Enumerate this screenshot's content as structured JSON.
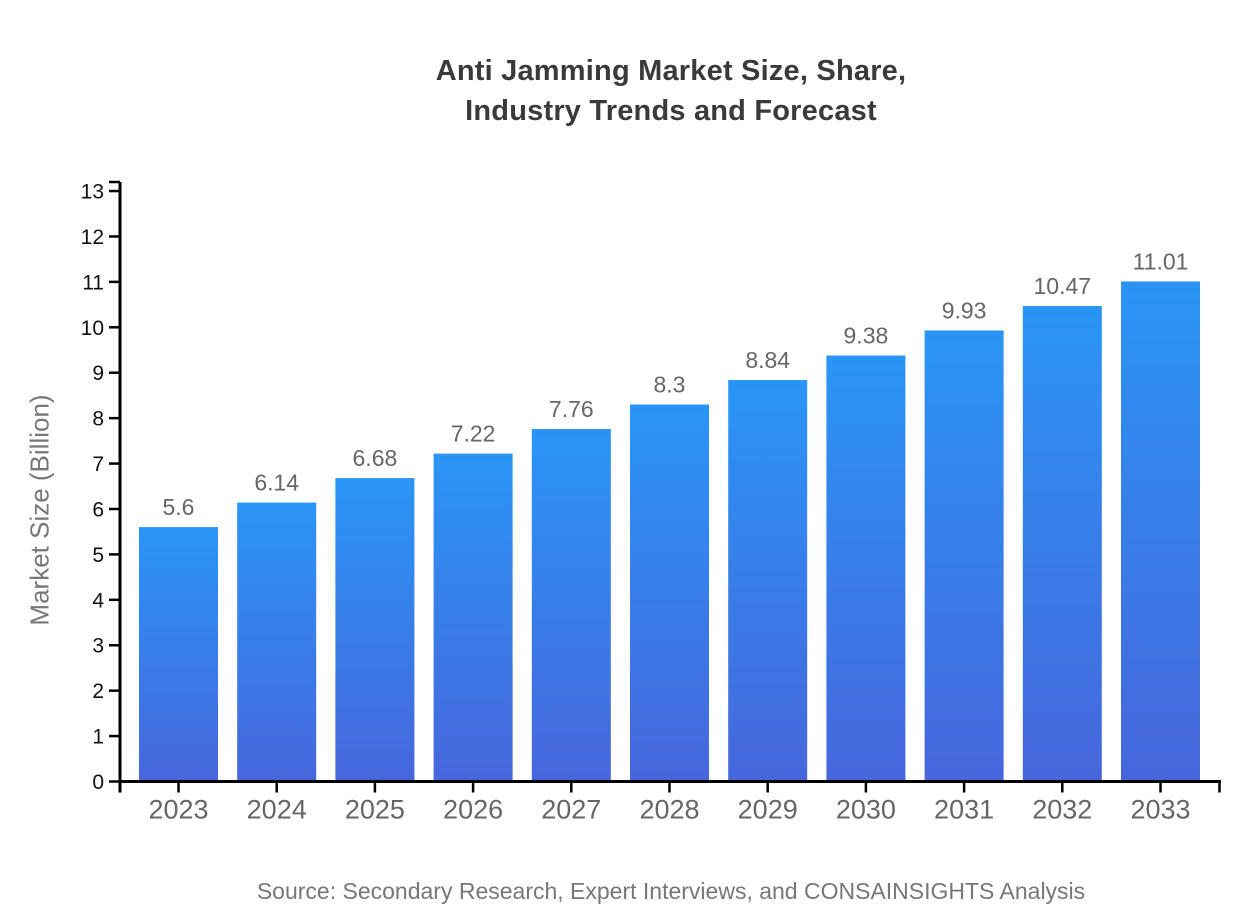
{
  "chart_data": {
    "type": "bar",
    "title": "Anti Jamming Market Size, Share,\nIndustry Trends and Forecast",
    "xlabel": "",
    "ylabel": "Market Size (Billion)",
    "source": "Source: Secondary Research, Expert Interviews, and CONSAINSIGHTS Analysis",
    "categories": [
      "2023",
      "2024",
      "2025",
      "2026",
      "2027",
      "2028",
      "2029",
      "2030",
      "2031",
      "2032",
      "2033"
    ],
    "values": [
      5.6,
      6.14,
      6.68,
      7.22,
      7.76,
      8.3,
      8.84,
      9.38,
      9.93,
      10.47,
      11.01
    ],
    "value_labels": [
      "5.6",
      "6.14",
      "6.68",
      "7.22",
      "7.76",
      "8.3",
      "8.84",
      "9.38",
      "9.93",
      "10.47",
      "11.01"
    ],
    "ylim": [
      0,
      13
    ],
    "ytick_step": 1,
    "grid": false,
    "legend": null,
    "colors": {
      "bar_gradient_top": "#2A95F5",
      "bar_gradient_bottom": "#4766DC",
      "axis": "#000000",
      "y_tick_label": "#111111",
      "x_tick_label": "#666666",
      "value_label": "#666666",
      "title": "#3a3a3a",
      "muted_text": "#777777"
    }
  }
}
